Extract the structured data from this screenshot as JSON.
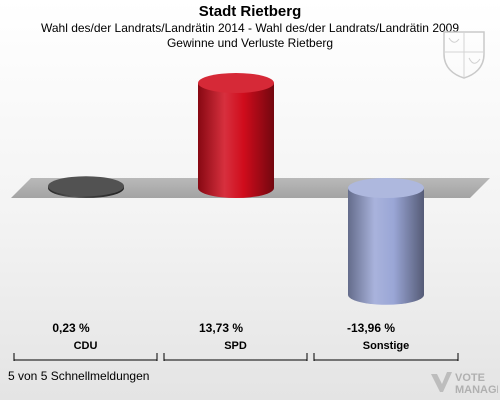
{
  "header": {
    "title": "Stadt Rietberg",
    "subtitle": "Wahl des/der Landrats/Landrätin 2014 - Wahl des/der Landrats/Landrätin 2009",
    "subtitle2": "Gewinne und Verluste Rietberg"
  },
  "footer": {
    "note": "5 von 5 Schnellmeldungen",
    "logo_line1": "VOTE",
    "logo_line2": "MANAGER"
  },
  "chart_data": {
    "type": "bar",
    "title": "Gewinne und Verluste Rietberg",
    "categories": [
      "CDU",
      "SPD",
      "Sonstige"
    ],
    "values": [
      0.23,
      13.73,
      -13.96
    ],
    "value_labels": [
      "0,23 %",
      "13,73 %",
      "-13,96 %"
    ],
    "colors": [
      "#3a3a3a",
      "#d00c1c",
      "#9aa6d6"
    ],
    "ylim": [
      -14.5,
      14.5
    ],
    "grid": false,
    "legend": "none"
  }
}
